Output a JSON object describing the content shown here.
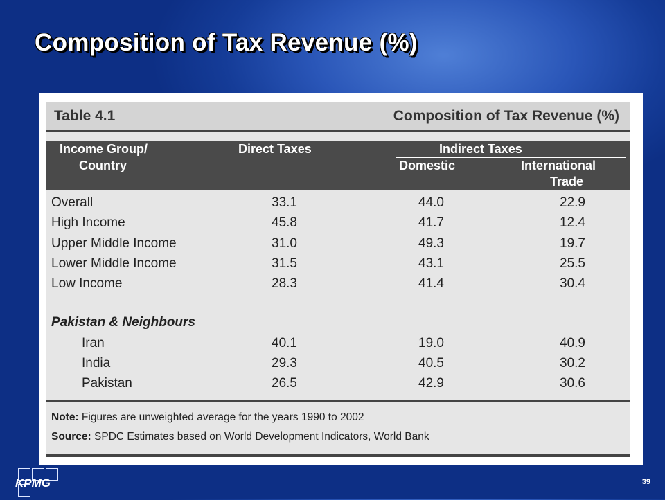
{
  "slide": {
    "title": "Composition of Tax Revenue (%)",
    "page_number": "39",
    "logo_text": "KPMG"
  },
  "table": {
    "number": "Table 4.1",
    "title": "Composition of Tax Revenue (%)",
    "headers": {
      "group_line1": "Income Group/",
      "group_line2": "Country",
      "direct": "Direct Taxes",
      "indirect": "Indirect Taxes",
      "domestic": "Domestic",
      "intl_line1": "International",
      "intl_line2": "Trade"
    },
    "income_rows": [
      {
        "name": "Overall",
        "direct": "33.1",
        "domestic": "44.0",
        "international": "22.9"
      },
      {
        "name": "High Income",
        "direct": "45.8",
        "domestic": "41.7",
        "international": "12.4"
      },
      {
        "name": "Upper Middle Income",
        "direct": "31.0",
        "domestic": "49.3",
        "international": "19.7"
      },
      {
        "name": "Lower Middle Income",
        "direct": "31.5",
        "domestic": "43.1",
        "international": "25.5"
      },
      {
        "name": "Low Income",
        "direct": "28.3",
        "domestic": "41.4",
        "international": "30.4"
      }
    ],
    "section_label": "Pakistan & Neighbours",
    "country_rows": [
      {
        "name": "Iran",
        "direct": "40.1",
        "domestic": "19.0",
        "international": "40.9"
      },
      {
        "name": "India",
        "direct": "29.3",
        "domestic": "40.5",
        "international": "30.2"
      },
      {
        "name": "Pakistan",
        "direct": "26.5",
        "domestic": "42.9",
        "international": "30.6"
      }
    ],
    "note_label": "Note:",
    "note_text": "Figures are unweighted average for the years 1990 to 2002",
    "source_label": "Source:",
    "source_text": "SPDC Estimates based on World Development Indicators, World Bank"
  }
}
